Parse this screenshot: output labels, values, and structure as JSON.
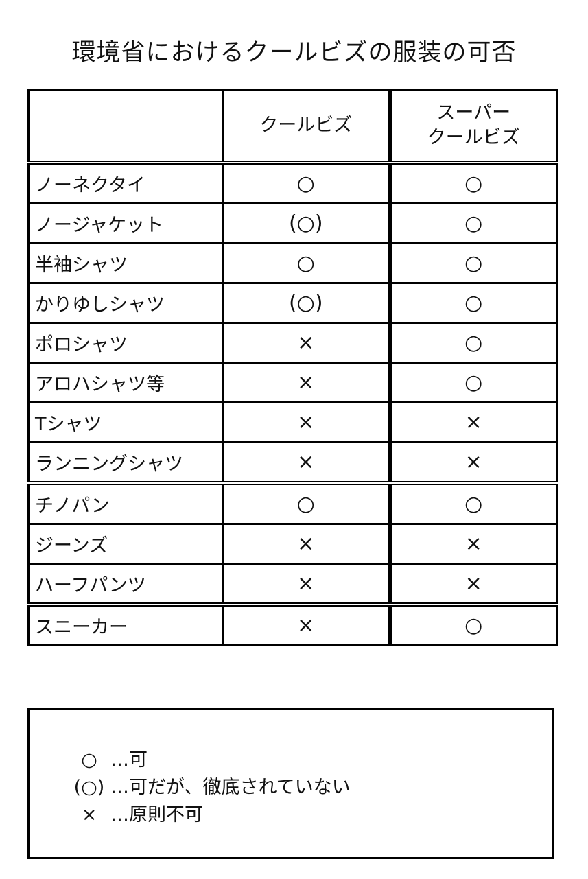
{
  "title": "環境省におけるクールビズの服装の可否",
  "table": {
    "headers": [
      "",
      "クールビズ",
      "スーパー\nクールビズ"
    ],
    "header_lines": {
      "col1": "クールビズ",
      "col2_line1": "スーパー",
      "col2_line2": "クールビズ"
    },
    "rows": [
      {
        "item": "ノーネクタイ",
        "coolbiz": "○",
        "super": "○"
      },
      {
        "item": "ノージャケット",
        "coolbiz": "(○)",
        "super": "○"
      },
      {
        "item": "半袖シャツ",
        "coolbiz": "○",
        "super": "○"
      },
      {
        "item": "かりゆしシャツ",
        "coolbiz": "(○)",
        "super": "○"
      },
      {
        "item": "ポロシャツ",
        "coolbiz": "×",
        "super": "○"
      },
      {
        "item": "アロハシャツ等",
        "coolbiz": "×",
        "super": "○"
      },
      {
        "item": "Tシャツ",
        "coolbiz": "×",
        "super": "×"
      },
      {
        "item": "ランニングシャツ",
        "coolbiz": "×",
        "super": "×"
      },
      {
        "item": "チノパン",
        "coolbiz": "○",
        "super": "○"
      },
      {
        "item": "ジーンズ",
        "coolbiz": "×",
        "super": "×"
      },
      {
        "item": "ハーフパンツ",
        "coolbiz": "×",
        "super": "×"
      },
      {
        "item": "スニーカー",
        "coolbiz": "×",
        "super": "○"
      }
    ]
  },
  "legend": [
    {
      "symbol": "○",
      "text": "…可"
    },
    {
      "symbol": "(○)",
      "text": "…可だが、徹底されていない"
    },
    {
      "symbol": "×",
      "text": "…原則不可"
    }
  ]
}
